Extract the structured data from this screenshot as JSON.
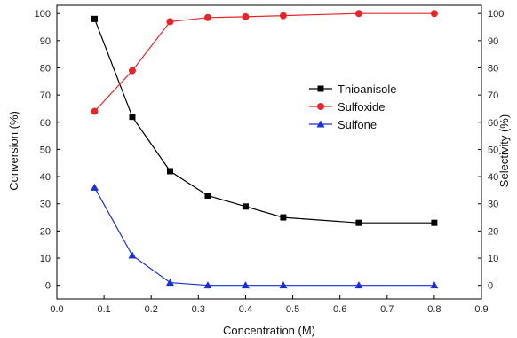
{
  "chart_data": {
    "type": "line",
    "title": "",
    "xlabel": "Concentration (M)",
    "ylabel_left": "Conversion (%)",
    "ylabel_right": "Selectivity (%)",
    "xlim": [
      0.0,
      0.9
    ],
    "ylim": [
      -5,
      103
    ],
    "x_ticks": [
      "0.0",
      "0.1",
      "0.2",
      "0.3",
      "0.4",
      "0.5",
      "0.6",
      "0.7",
      "0.8",
      "0.9"
    ],
    "y_ticks": [
      "0",
      "10",
      "20",
      "30",
      "40",
      "50",
      "60",
      "70",
      "80",
      "90",
      "100"
    ],
    "grid": false,
    "legend_position": "center-right",
    "series": [
      {
        "name": "Thioanisole",
        "axis": "left",
        "color": "#000000",
        "marker": "square",
        "x": [
          0.08,
          0.16,
          0.24,
          0.32,
          0.4,
          0.48,
          0.64,
          0.8
        ],
        "values": [
          98,
          62,
          42,
          33,
          29,
          25,
          23,
          23
        ]
      },
      {
        "name": "Sulfoxide",
        "axis": "right",
        "color": "#e8262a",
        "marker": "circle",
        "x": [
          0.08,
          0.16,
          0.24,
          0.32,
          0.4,
          0.48,
          0.64,
          0.8
        ],
        "values": [
          64,
          79,
          97,
          98.5,
          98.8,
          99.2,
          100,
          100
        ]
      },
      {
        "name": "Sulfone",
        "axis": "right",
        "color": "#1a2fd6",
        "marker": "triangle",
        "x": [
          0.08,
          0.16,
          0.24,
          0.32,
          0.4,
          0.48,
          0.64,
          0.8
        ],
        "values": [
          36,
          11,
          1,
          0,
          0,
          0,
          0,
          0
        ]
      }
    ]
  }
}
